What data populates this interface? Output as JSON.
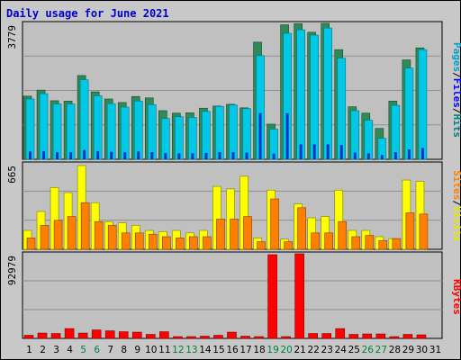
{
  "title": "Daily usage for June 2021",
  "colors": {
    "background": "#c8c8c8",
    "panel": "#c0c0c0",
    "hits": "#00c8e6",
    "files": "#00b4c8",
    "pages": "#008080",
    "sites": "#ff8000",
    "visits": "#ffff00",
    "kbytes": "#ff0000",
    "weekend_label": "#008040",
    "weekday_label": "#000000"
  },
  "chart_data": [
    {
      "type": "bar",
      "panel": "hits-files-pages",
      "ymax_label": "3779",
      "ylim": [
        0,
        3779
      ],
      "categories": [
        "1",
        "2",
        "3",
        "4",
        "5",
        "6",
        "7",
        "8",
        "9",
        "10",
        "11",
        "12",
        "13",
        "14",
        "15",
        "16",
        "17",
        "18",
        "19",
        "20",
        "21",
        "22",
        "23",
        "24",
        "25",
        "26",
        "27",
        "28",
        "29",
        "30",
        "31"
      ],
      "weekend_days": [
        "5",
        "6",
        "12",
        "13",
        "19",
        "20",
        "26",
        "27"
      ],
      "legend": [
        {
          "text": "Pages",
          "color": "#00a0c8"
        },
        {
          "text": "/",
          "color": "#000000"
        },
        {
          "text": "Files",
          "color": "#0000ff"
        },
        {
          "text": "/",
          "color": "#000000"
        },
        {
          "text": "Hits",
          "color": "#008080"
        }
      ],
      "series": [
        {
          "name": "Hits",
          "color": "#2e8b57",
          "values": [
            1780,
            1950,
            1650,
            1640,
            2360,
            1900,
            1700,
            1600,
            1770,
            1730,
            1370,
            1300,
            1310,
            1440,
            1500,
            1550,
            1450,
            3300,
            990,
            3790,
            3820,
            3580,
            3880,
            3090,
            1480,
            1300,
            870,
            1640,
            2800,
            3140,
            0
          ]
        },
        {
          "name": "Files",
          "color": "#00c8e6",
          "values": [
            1700,
            1850,
            1560,
            1560,
            2240,
            1790,
            1570,
            1470,
            1640,
            1540,
            1150,
            1200,
            1180,
            1350,
            1490,
            1530,
            1430,
            2920,
            850,
            3550,
            3650,
            3500,
            3700,
            2850,
            1370,
            1100,
            590,
            1520,
            2570,
            3090,
            0
          ]
        },
        {
          "name": "Pages",
          "color": "#0033cc",
          "values": [
            220,
            230,
            200,
            200,
            260,
            230,
            210,
            200,
            220,
            200,
            170,
            170,
            170,
            180,
            200,
            200,
            190,
            1300,
            160,
            1300,
            420,
            420,
            420,
            400,
            190,
            170,
            120,
            200,
            280,
            320,
            0
          ]
        }
      ]
    },
    {
      "type": "bar",
      "panel": "visits-sites",
      "ymax_label": "665",
      "ylim": [
        0,
        665
      ],
      "categories": [
        "1",
        "2",
        "3",
        "4",
        "5",
        "6",
        "7",
        "8",
        "9",
        "10",
        "11",
        "12",
        "13",
        "14",
        "15",
        "16",
        "17",
        "18",
        "19",
        "20",
        "21",
        "22",
        "23",
        "24",
        "25",
        "26",
        "27",
        "28",
        "29",
        "30",
        "31"
      ],
      "legend": [
        {
          "text": "Sites",
          "color": "#ff8000"
        },
        {
          "text": "/",
          "color": "#000000"
        },
        {
          "text": "Visits",
          "color": "#e6e600"
        }
      ],
      "series": [
        {
          "name": "Visits",
          "color": "#ffff00",
          "values": [
            150,
            300,
            490,
            450,
            665,
            370,
            220,
            210,
            190,
            150,
            140,
            150,
            130,
            150,
            500,
            480,
            580,
            90,
            470,
            80,
            360,
            250,
            260,
            470,
            150,
            150,
            100,
            85,
            550,
            540,
            0
          ]
        },
        {
          "name": "Sites",
          "color": "#ff8000",
          "values": [
            90,
            190,
            230,
            260,
            370,
            220,
            190,
            130,
            130,
            120,
            100,
            90,
            100,
            100,
            240,
            240,
            260,
            60,
            400,
            60,
            330,
            130,
            130,
            220,
            100,
            110,
            70,
            85,
            290,
            280,
            0
          ]
        }
      ]
    },
    {
      "type": "bar",
      "panel": "kbytes",
      "ymax_label": "92979",
      "ylim": [
        0,
        92979
      ],
      "categories": [
        "1",
        "2",
        "3",
        "4",
        "5",
        "6",
        "7",
        "8",
        "9",
        "10",
        "11",
        "12",
        "13",
        "14",
        "15",
        "16",
        "17",
        "18",
        "19",
        "20",
        "21",
        "22",
        "23",
        "24",
        "25",
        "26",
        "27",
        "28",
        "29",
        "30",
        "31"
      ],
      "legend": [
        {
          "text": "KBytes",
          "color": "#ff0000"
        }
      ],
      "series": [
        {
          "name": "KBytes",
          "color": "#ff0000",
          "values": [
            3500,
            6000,
            5500,
            11000,
            6000,
            9500,
            8500,
            7500,
            7000,
            4500,
            7500,
            2000,
            2000,
            2500,
            3500,
            7000,
            2500,
            2000,
            94000,
            2000,
            97000,
            5500,
            5500,
            11000,
            4500,
            5000,
            5000,
            2000,
            4500,
            4000,
            0
          ]
        }
      ]
    }
  ]
}
